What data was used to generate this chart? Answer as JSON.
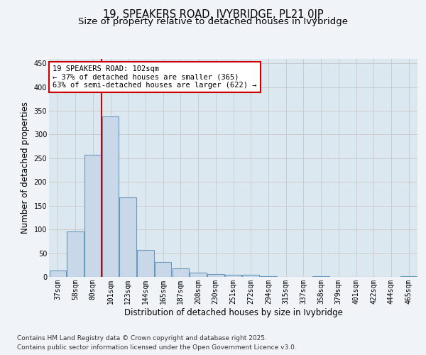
{
  "title_line1": "19, SPEAKERS ROAD, IVYBRIDGE, PL21 0JP",
  "title_line2": "Size of property relative to detached houses in Ivybridge",
  "xlabel": "Distribution of detached houses by size in Ivybridge",
  "ylabel": "Number of detached properties",
  "categories": [
    "37sqm",
    "58sqm",
    "80sqm",
    "101sqm",
    "123sqm",
    "144sqm",
    "165sqm",
    "187sqm",
    "208sqm",
    "230sqm",
    "251sqm",
    "272sqm",
    "294sqm",
    "315sqm",
    "337sqm",
    "358sqm",
    "379sqm",
    "401sqm",
    "422sqm",
    "444sqm",
    "465sqm"
  ],
  "values": [
    13,
    95,
    258,
    338,
    168,
    57,
    31,
    18,
    9,
    6,
    4,
    4,
    1,
    0,
    0,
    1,
    0,
    0,
    0,
    0,
    1
  ],
  "bar_color": "#c8d8e8",
  "bar_edge_color": "#6699bb",
  "grid_color": "#cccccc",
  "background_color": "#f0f4f8",
  "plot_bg_color": "#dce8f0",
  "vline_x_index": 3,
  "vline_color": "#cc0000",
  "annotation_text": "19 SPEAKERS ROAD: 102sqm\n← 37% of detached houses are smaller (365)\n63% of semi-detached houses are larger (622) →",
  "annotation_box_color": "#ffffff",
  "annotation_box_edge": "#cc0000",
  "ylim": [
    0,
    460
  ],
  "yticks": [
    0,
    50,
    100,
    150,
    200,
    250,
    300,
    350,
    400,
    450
  ],
  "footer_line1": "Contains HM Land Registry data © Crown copyright and database right 2025.",
  "footer_line2": "Contains public sector information licensed under the Open Government Licence v3.0.",
  "title_fontsize": 10.5,
  "subtitle_fontsize": 9.5,
  "tick_fontsize": 7,
  "label_fontsize": 8.5,
  "footer_fontsize": 6.5,
  "annot_fontsize": 7.5
}
